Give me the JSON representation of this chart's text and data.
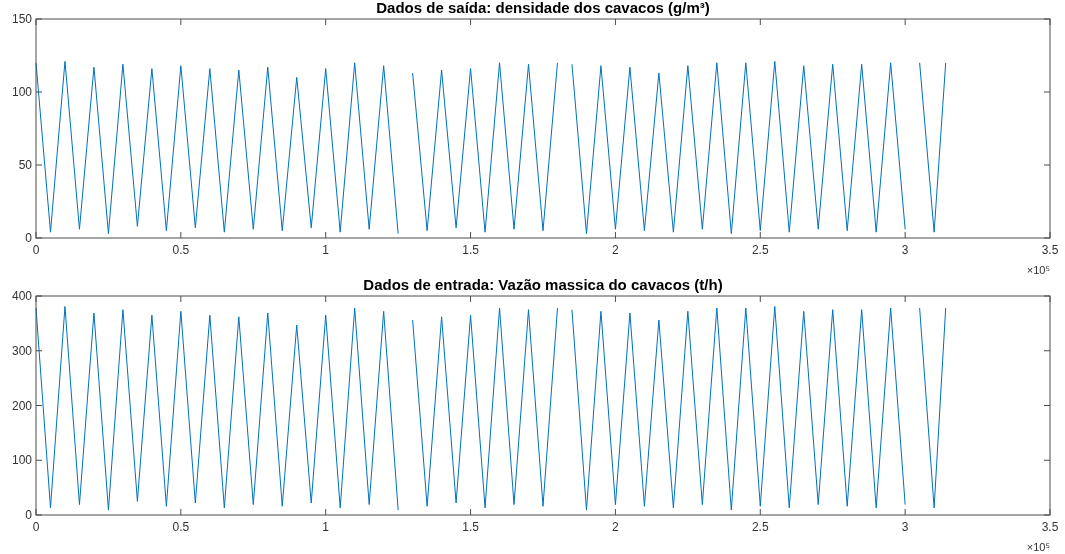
{
  "chart_data": [
    {
      "type": "line",
      "title": "Dados de saída: densidade dos cavacos (g/m³)",
      "annotations": [
        "×10⁵"
      ],
      "x": [
        0,
        0.05,
        0.1,
        0.15,
        0.2,
        0.25,
        0.3,
        0.35,
        0.4,
        0.45,
        0.5,
        0.55,
        0.6,
        0.65,
        0.7,
        0.75,
        0.8,
        0.85,
        0.9,
        0.95,
        1,
        1.05,
        1.1,
        1.15,
        1.2,
        1.25,
        1.28,
        1.3,
        1.35,
        1.4,
        1.45,
        1.5,
        1.55,
        1.6,
        1.65,
        1.7,
        1.75,
        1.8,
        1.81,
        1.85,
        1.9,
        1.95,
        2,
        2.05,
        2.1,
        2.15,
        2.2,
        2.25,
        2.3,
        2.35,
        2.4,
        2.45,
        2.5,
        2.55,
        2.6,
        2.65,
        2.7,
        2.75,
        2.8,
        2.85,
        2.9,
        2.95,
        3,
        3.01,
        3.05,
        3.1,
        3.14
      ],
      "series": [
        {
          "color": "#0072bd",
          "values": [
            120,
            4,
            121,
            6,
            117,
            3,
            119,
            8,
            116,
            5,
            118,
            7,
            116,
            4,
            115,
            6,
            117,
            5,
            110,
            7,
            116,
            4,
            120,
            6,
            118,
            3,
            null,
            113,
            5,
            115,
            7,
            116,
            4,
            120,
            6,
            119,
            5,
            120,
            null,
            119,
            3,
            118,
            6,
            117,
            5,
            113,
            4,
            118,
            6,
            120,
            3,
            120,
            5,
            121,
            4,
            118,
            6,
            119,
            5,
            119,
            4,
            120,
            6,
            null,
            120,
            4,
            120
          ]
        }
      ],
      "xlim": [
        0,
        3.5
      ],
      "xticks": [
        0,
        0.5,
        1,
        1.5,
        2,
        2.5,
        3,
        3.5
      ],
      "ylim": [
        0,
        150
      ],
      "yticks": [
        0,
        50,
        100,
        150
      ],
      "grid": false
    },
    {
      "type": "line",
      "title": "Dados de entrada: Vazão massica do cavacos (t/h)",
      "annotations": [
        "×10⁵"
      ],
      "x": [
        0,
        0.05,
        0.1,
        0.15,
        0.2,
        0.25,
        0.3,
        0.35,
        0.4,
        0.45,
        0.5,
        0.55,
        0.6,
        0.65,
        0.7,
        0.75,
        0.8,
        0.85,
        0.9,
        0.95,
        1,
        1.05,
        1.1,
        1.15,
        1.2,
        1.25,
        1.28,
        1.3,
        1.35,
        1.4,
        1.45,
        1.5,
        1.55,
        1.6,
        1.65,
        1.7,
        1.75,
        1.8,
        1.81,
        1.85,
        1.9,
        1.95,
        2,
        2.05,
        2.1,
        2.15,
        2.2,
        2.25,
        2.3,
        2.35,
        2.4,
        2.45,
        2.5,
        2.55,
        2.6,
        2.65,
        2.7,
        2.75,
        2.8,
        2.85,
        2.9,
        2.95,
        3,
        3.01,
        3.05,
        3.1,
        3.14
      ],
      "series": [
        {
          "color": "#0072bd",
          "values": [
            378,
            13,
            381,
            19,
            369,
            9,
            375,
            25,
            365,
            16,
            372,
            22,
            365,
            13,
            362,
            19,
            369,
            16,
            347,
            22,
            365,
            13,
            378,
            19,
            372,
            9,
            null,
            356,
            16,
            362,
            22,
            365,
            13,
            378,
            19,
            375,
            16,
            378,
            null,
            375,
            9,
            372,
            19,
            369,
            16,
            356,
            13,
            372,
            19,
            378,
            9,
            378,
            16,
            381,
            13,
            372,
            19,
            375,
            16,
            375,
            13,
            378,
            19,
            null,
            378,
            13,
            378
          ]
        }
      ],
      "xlim": [
        0,
        3.5
      ],
      "xticks": [
        0,
        0.5,
        1,
        1.5,
        2,
        2.5,
        3,
        3.5
      ],
      "ylim": [
        0,
        400
      ],
      "yticks": [
        0,
        100,
        200,
        300,
        400
      ],
      "grid": false
    }
  ]
}
